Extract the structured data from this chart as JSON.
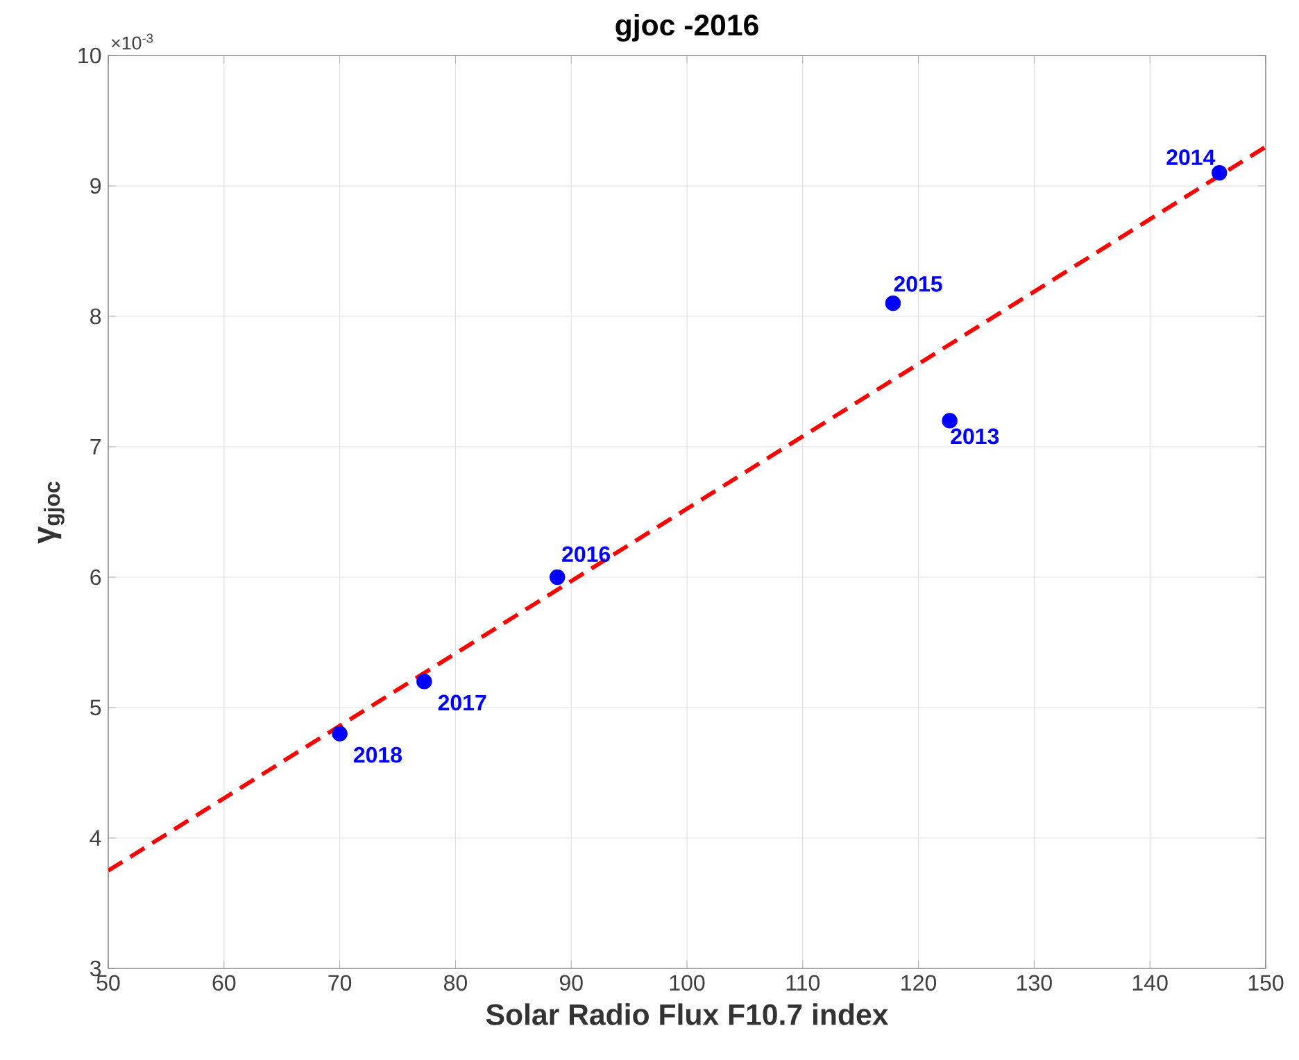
{
  "chart_data": {
    "type": "scatter",
    "title": "gjoc -2016",
    "xlabel": "Solar Radio Flux F10.7 index",
    "ylabel": "γ$_{gjoc}$",
    "series": [
      {
        "type": "scatter",
        "color": "#0000ff",
        "marker": "circle",
        "x": [
          70,
          77.3,
          88.8,
          117.8,
          122.7,
          146
        ],
        "values": [
          4.8,
          5.2,
          6.0,
          8.1,
          7.2,
          9.1
        ]
      },
      {
        "type": "line",
        "color": "#ff0000",
        "line_style": "dashed",
        "marker": "none",
        "x": [
          50,
          150
        ],
        "values": [
          3.75,
          9.3
        ]
      }
    ],
    "annotations": [
      {
        "text": "2018",
        "x": 70,
        "y": 4.8
      },
      {
        "text": "2017",
        "x": 77.3,
        "y": 5.2
      },
      {
        "text": "2016",
        "x": 88.8,
        "y": 6.0
      },
      {
        "text": "2015",
        "x": 117.8,
        "y": 8.1
      },
      {
        "text": "2013",
        "x": 122.7,
        "y": 7.2
      },
      {
        "text": "2014",
        "x": 146,
        "y": 9.1
      },
      "×10$^{-3}$"
    ],
    "xlim": [
      50,
      150
    ],
    "xticks": [
      50,
      60,
      70,
      80,
      90,
      100,
      110,
      120,
      130,
      140,
      150
    ],
    "ylim": [
      3,
      10
    ],
    "yticks": [
      3,
      4,
      5,
      6,
      7,
      8,
      9,
      10
    ],
    "grid": true
  }
}
